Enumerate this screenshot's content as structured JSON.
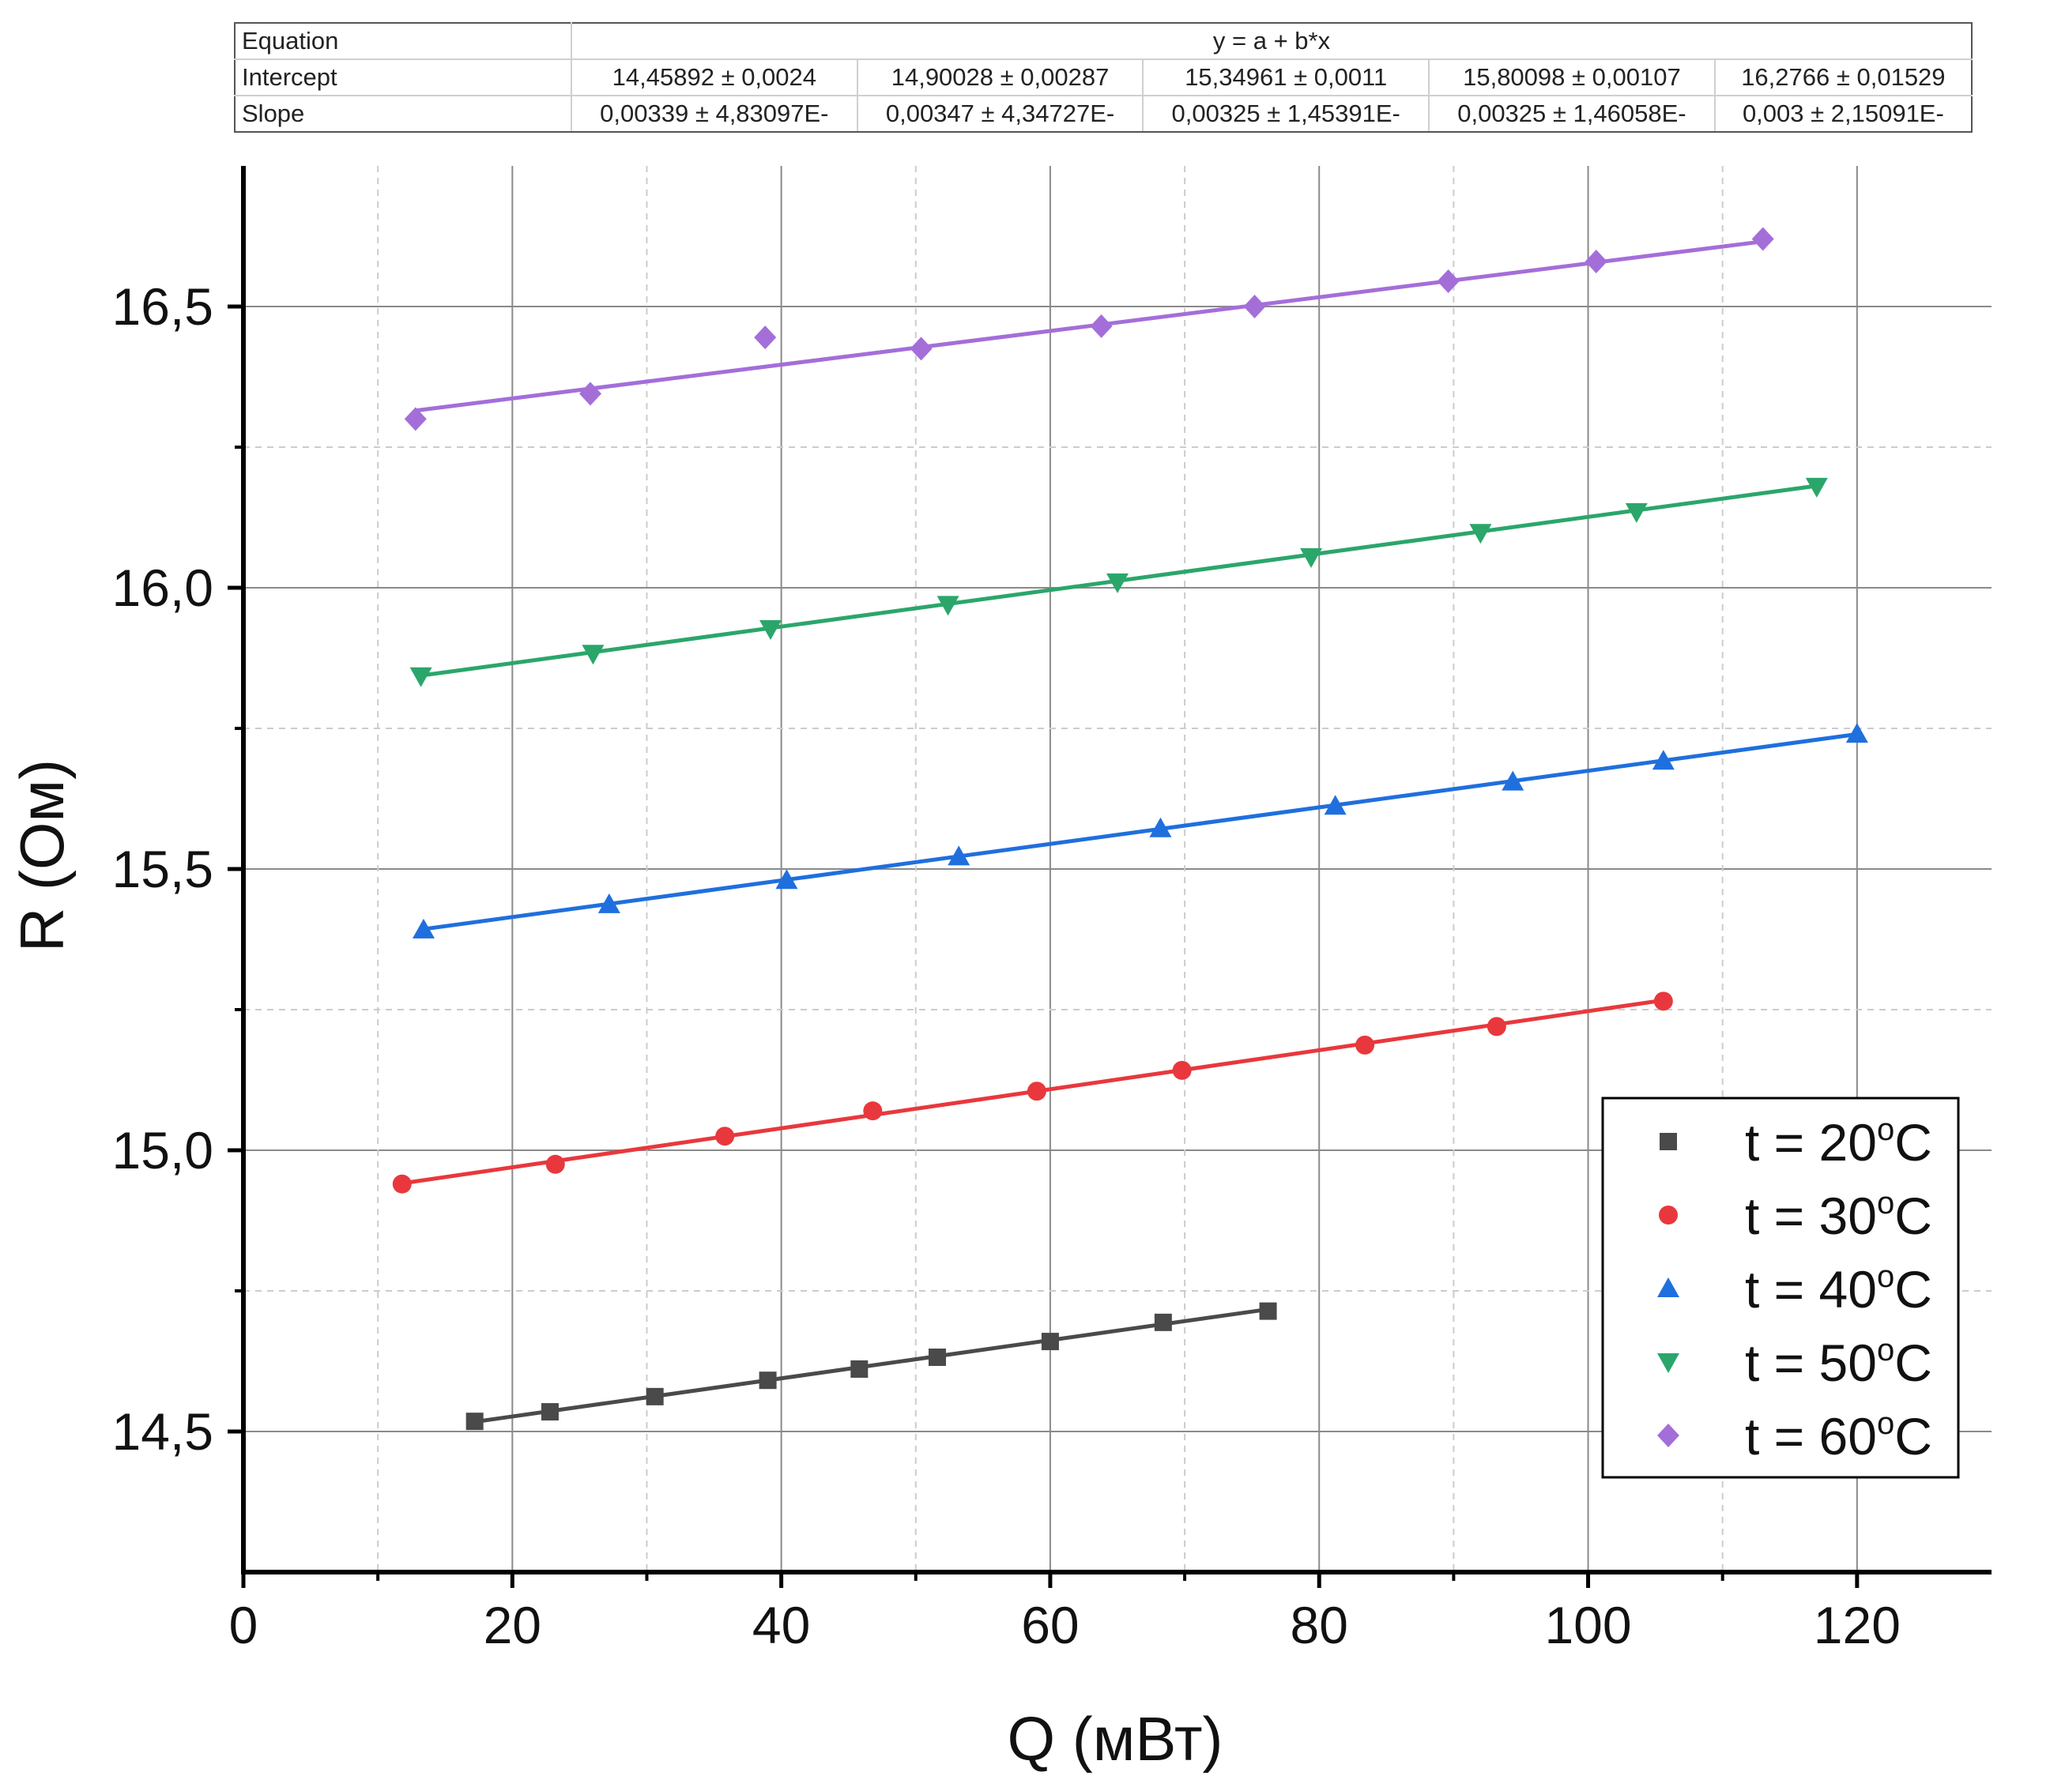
{
  "fit_table": {
    "rows": [
      {
        "label": "Equation",
        "cells": [
          "y = a + b*x"
        ]
      },
      {
        "label": "Intercept",
        "cells": [
          "14,45892 ± 0,0024",
          "14,90028 ± 0,00287",
          "15,34961 ± 0,0011",
          "15,80098 ± 0,00107",
          "16,2766 ± 0,01529"
        ]
      },
      {
        "label": "Slope",
        "cells": [
          "0,00339 ± 4,83097E-",
          "0,00347 ± 4,34727E-",
          "0,00325 ± 1,45391E-",
          "0,00325 ± 1,46058E-",
          "0,003 ± 2,15091E-"
        ]
      }
    ]
  },
  "chart_data": {
    "type": "scatter",
    "title": "",
    "xlabel": "Q (мВт)",
    "ylabel": "R (Ом)",
    "xlim": [
      0,
      130
    ],
    "ylim": [
      14.25,
      16.75
    ],
    "x_ticks": [
      0,
      20,
      40,
      60,
      80,
      100,
      120
    ],
    "x_tick_labels": [
      "0",
      "20",
      "40",
      "60",
      "80",
      "100",
      "120"
    ],
    "y_ticks": [
      14.5,
      15.0,
      15.5,
      16.0,
      16.5
    ],
    "y_tick_labels": [
      "14,5",
      "15,0",
      "15,5",
      "16,0",
      "16,5"
    ],
    "grid": true,
    "legend_position": "bottom-right",
    "series": [
      {
        "name": "t = 20°C",
        "legend_base": "t = 20",
        "legend_sup": "o",
        "legend_unit": "C",
        "marker": "square",
        "color": "#4a4a4a",
        "intercept": 14.45892,
        "slope": 0.00339,
        "x": [
          17.2,
          22.8,
          30.6,
          39.0,
          45.8,
          51.6,
          60.0,
          68.4,
          76.2
        ],
        "y": [
          14.518,
          14.535,
          14.562,
          14.591,
          14.611,
          14.632,
          14.66,
          14.694,
          14.714
        ]
      },
      {
        "name": "t = 30°C",
        "legend_base": "t = 30",
        "legend_sup": "o",
        "legend_unit": "C",
        "marker": "circle",
        "color": "#e8383d",
        "intercept": 14.90028,
        "slope": 0.00347,
        "x": [
          11.8,
          23.2,
          35.8,
          46.8,
          59.0,
          69.8,
          83.4,
          93.2,
          105.6
        ],
        "y": [
          14.94,
          14.975,
          15.025,
          15.07,
          15.105,
          15.142,
          15.187,
          15.22,
          15.265
        ]
      },
      {
        "name": "t = 40°C",
        "legend_base": "t = 40",
        "legend_sup": "o",
        "legend_unit": "C",
        "marker": "triangle-up",
        "color": "#1f6fde",
        "intercept": 15.34961,
        "slope": 0.00325,
        "x": [
          13.4,
          27.2,
          40.4,
          53.2,
          68.2,
          81.2,
          94.4,
          105.6,
          120.0
        ],
        "y": [
          15.392,
          15.437,
          15.48,
          15.522,
          15.572,
          15.612,
          15.655,
          15.692,
          15.74
        ]
      },
      {
        "name": "t = 50°C",
        "legend_base": "t = 50",
        "legend_sup": "o",
        "legend_unit": "C",
        "marker": "triangle-down",
        "color": "#2ba66a",
        "intercept": 15.80098,
        "slope": 0.00325,
        "x": [
          13.2,
          26.0,
          39.2,
          52.4,
          65.0,
          79.4,
          92.0,
          103.6,
          117.0
        ],
        "y": [
          15.843,
          15.883,
          15.927,
          15.97,
          16.01,
          16.055,
          16.098,
          16.135,
          16.18
        ]
      },
      {
        "name": "t = 60°C",
        "legend_base": "t = 60",
        "legend_sup": "o",
        "legend_unit": "C",
        "marker": "diamond",
        "color": "#a46ed9",
        "intercept": 16.2766,
        "slope": 0.003,
        "x": [
          12.8,
          25.8,
          38.8,
          50.4,
          63.8,
          75.2,
          89.6,
          100.6,
          113.0
        ],
        "y": [
          16.3,
          16.345,
          16.445,
          16.425,
          16.465,
          16.5,
          16.545,
          16.58,
          16.62
        ]
      }
    ]
  }
}
